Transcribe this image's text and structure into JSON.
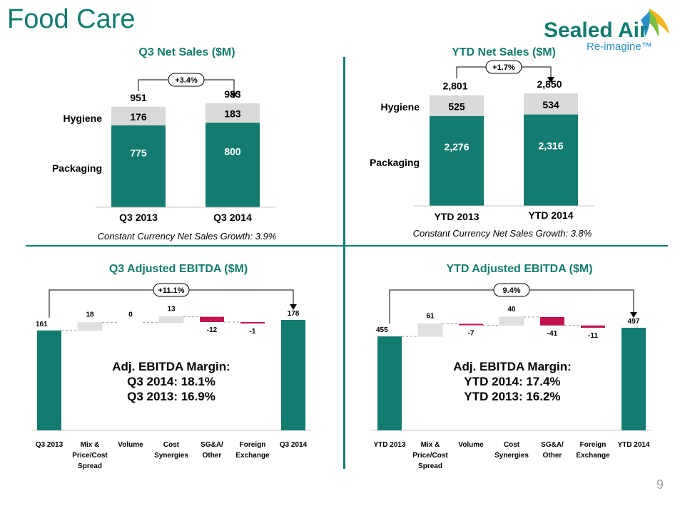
{
  "page": {
    "title": "Food Care",
    "number": "9"
  },
  "logo": {
    "brand": "Sealed Air",
    "tagline": "Re-imagine™"
  },
  "colors": {
    "accent": "#137b6f",
    "hygiene": "#d9d9d9",
    "positive": "#e0e0e0",
    "negative": "#c0134f",
    "connector": "#9a9a9a"
  },
  "chart_data": [
    {
      "id": "q3-net-sales",
      "type": "bar",
      "title": "Q3 Net Sales ($M)",
      "categories": [
        "Q3 2013",
        "Q3 2014"
      ],
      "series": [
        {
          "name": "Packaging",
          "values": [
            775,
            800
          ]
        },
        {
          "name": "Hygiene",
          "values": [
            176,
            183
          ]
        }
      ],
      "totals": [
        "951",
        "983"
      ],
      "value_labels": {
        "Packaging": [
          "775",
          "800"
        ],
        "Hygiene": [
          "176",
          "183"
        ]
      },
      "growth": "+3.4%",
      "footnote": "Constant Currency Net Sales Growth:  3.9%",
      "ylim": [
        0,
        983
      ]
    },
    {
      "id": "ytd-net-sales",
      "type": "bar",
      "title": "YTD Net Sales ($M)",
      "categories": [
        "YTD 2013",
        "YTD 2014"
      ],
      "series": [
        {
          "name": "Packaging",
          "values": [
            2276,
            2316
          ]
        },
        {
          "name": "Hygiene",
          "values": [
            525,
            534
          ]
        }
      ],
      "totals": [
        "2,801",
        "2,850"
      ],
      "value_labels": {
        "Packaging": [
          "2,276",
          "2,316"
        ],
        "Hygiene": [
          "525",
          "534"
        ]
      },
      "growth": "+1.7%",
      "footnote": "Constant Currency Net Sales Growth:  3.8%",
      "ylim": [
        0,
        2850
      ]
    },
    {
      "id": "q3-ebitda",
      "type": "bar",
      "title": "Q3 Adjusted EBITDA ($M)",
      "categories": [
        "Q3 2013",
        "Mix & Price/Cost Spread",
        "Volume",
        "Cost Synergies",
        "SG&A/ Other",
        "Foreign Exchange",
        "Q3 2014"
      ],
      "steps": [
        161,
        18,
        0,
        13,
        -12,
        -1,
        178
      ],
      "value_labels": [
        "161",
        "18",
        "0",
        "13",
        "-12",
        "-1",
        "178"
      ],
      "growth": "+11.1%",
      "annotation": [
        "Adj. EBITDA Margin:",
        "Q3 2014: 18.1%",
        "Q3 2013: 16.9%"
      ]
    },
    {
      "id": "ytd-ebitda",
      "type": "bar",
      "title": "YTD Adjusted EBITDA ($M)",
      "categories": [
        "YTD 2013",
        "Mix & Price/Cost Spread",
        "Volume",
        "Cost Synergies",
        "SG&A/ Other",
        "Foreign Exchange",
        "YTD 2014"
      ],
      "steps": [
        455,
        61,
        -7,
        40,
        -41,
        -11,
        497
      ],
      "value_labels": [
        "455",
        "61",
        "-7",
        "40",
        "-41",
        "-11",
        "497"
      ],
      "growth": "9.4%",
      "annotation": [
        "Adj. EBITDA Margin:",
        "YTD 2014: 17.4%",
        "YTD 2013: 16.2%"
      ]
    }
  ]
}
